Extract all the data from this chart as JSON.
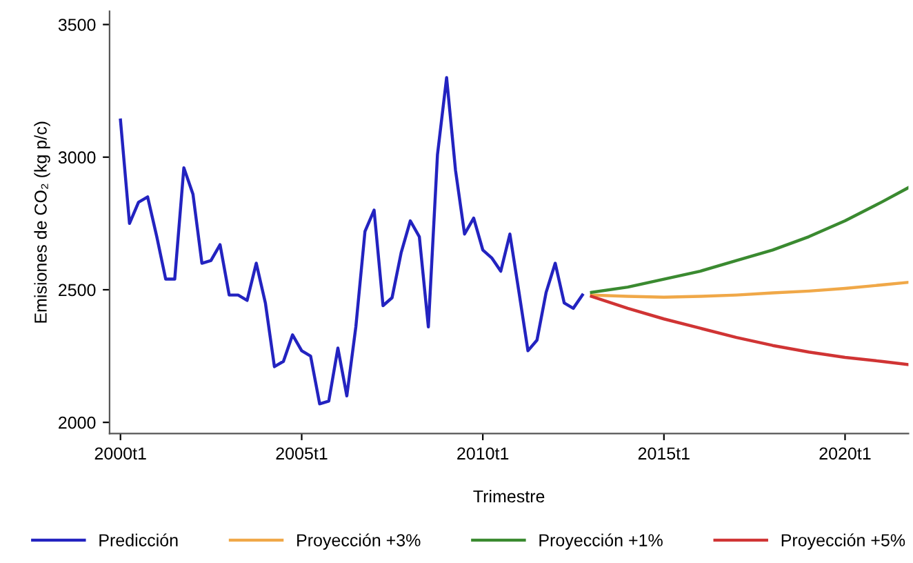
{
  "chart_data": {
    "type": "line",
    "xlabel": "Trimestre",
    "ylabel": "Emisiones de CO₂ (kg p/c)",
    "xlim": [
      "1999-09-13",
      "2021-10-01"
    ],
    "ylim": [
      1958,
      3550
    ],
    "xticks": [
      {
        "value": "2000-01",
        "label": "2000t1"
      },
      {
        "value": "2005-01",
        "label": "2005t1"
      },
      {
        "value": "2010-01",
        "label": "2010t1"
      },
      {
        "value": "2015-01",
        "label": "2015t1"
      },
      {
        "value": "2020-01",
        "label": "2020t1"
      }
    ],
    "yticks": [
      2000,
      2500,
      3000,
      3500
    ],
    "grid": false,
    "legend": "bottom",
    "marker": "none",
    "line_style": "solid",
    "series": [
      {
        "name": "Predicción",
        "color": "#2323c0",
        "x": [
          "2000-01",
          "2000-04",
          "2000-07",
          "2000-10",
          "2001-01",
          "2001-04",
          "2001-07",
          "2001-10",
          "2002-01",
          "2002-04",
          "2002-07",
          "2002-10",
          "2003-01",
          "2003-04",
          "2003-07",
          "2003-10",
          "2004-01",
          "2004-04",
          "2004-07",
          "2004-10",
          "2005-01",
          "2005-04",
          "2005-07",
          "2005-10",
          "2006-01",
          "2006-04",
          "2006-07",
          "2006-10",
          "2007-01",
          "2007-04",
          "2007-07",
          "2007-10",
          "2008-01",
          "2008-04",
          "2008-07",
          "2008-10",
          "2009-01",
          "2009-04",
          "2009-07",
          "2009-10",
          "2010-01",
          "2010-04",
          "2010-07",
          "2010-10",
          "2011-01",
          "2011-04",
          "2011-07",
          "2011-10",
          "2012-01",
          "2012-04",
          "2012-07",
          "2012-10"
        ],
        "values": [
          3140,
          2750,
          2830,
          2850,
          2700,
          2540,
          2540,
          2960,
          2860,
          2600,
          2610,
          2670,
          2480,
          2480,
          2460,
          2600,
          2450,
          2210,
          2230,
          2330,
          2270,
          2250,
          2070,
          2080,
          2280,
          2100,
          2360,
          2720,
          2800,
          2440,
          2470,
          2640,
          2760,
          2700,
          2360,
          3010,
          3300,
          2950,
          2710,
          2770,
          2650,
          2620,
          2570,
          2710,
          2490,
          2270,
          2310,
          2490,
          2600,
          2450,
          2430,
          2480
        ]
      },
      {
        "name": "Proyección +3%",
        "color": "#f0a848",
        "x": [
          "2013-01",
          "2014-01",
          "2015-01",
          "2016-01",
          "2017-01",
          "2018-01",
          "2019-01",
          "2020-01",
          "2021-01",
          "2021-10"
        ],
        "values": [
          2480,
          2475,
          2472,
          2475,
          2480,
          2488,
          2495,
          2505,
          2518,
          2528
        ]
      },
      {
        "name": "Proyección +1%",
        "color": "#3a8a30",
        "x": [
          "2013-01",
          "2014-01",
          "2015-01",
          "2016-01",
          "2017-01",
          "2018-01",
          "2019-01",
          "2020-01",
          "2021-01",
          "2021-10"
        ],
        "values": [
          2490,
          2510,
          2540,
          2570,
          2610,
          2650,
          2700,
          2760,
          2830,
          2885
        ]
      },
      {
        "name": "Proyección +5%",
        "color": "#d03434",
        "x": [
          "2013-01",
          "2014-01",
          "2015-01",
          "2016-01",
          "2017-01",
          "2018-01",
          "2019-01",
          "2020-01",
          "2021-01",
          "2021-10"
        ],
        "values": [
          2475,
          2430,
          2390,
          2355,
          2320,
          2290,
          2265,
          2245,
          2230,
          2218
        ]
      }
    ]
  }
}
